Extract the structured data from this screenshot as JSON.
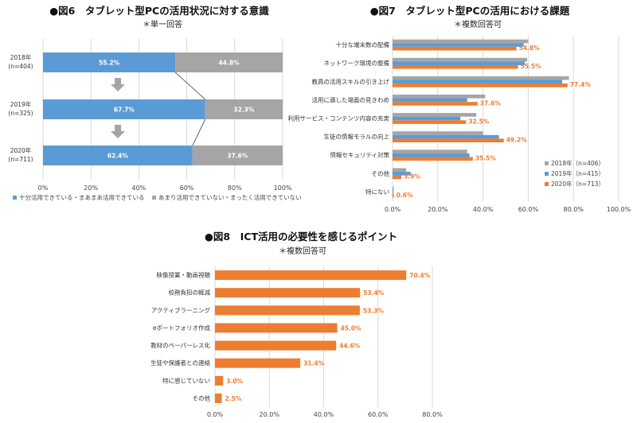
{
  "chart_data": [
    {
      "type": "bar",
      "orientation": "horizontal-stacked",
      "title": "●図6　タブレット型PCの活用状況に対する意識",
      "subtitle": "＊単一回答",
      "categories": [
        [
          "2018年",
          "(n=404)"
        ],
        [
          "2019年",
          "(n=325)"
        ],
        [
          "2020年",
          "(n=711)"
        ]
      ],
      "series": [
        {
          "name": "十分活用できている・まあまあ活用できている",
          "values": [
            55.2,
            67.7,
            62.4
          ],
          "labels": [
            "55.2%",
            "67.7%",
            "62.4%"
          ],
          "color": "#5b9bd5"
        },
        {
          "name": "あまり活用できていない・まったく活用できていない",
          "values": [
            44.8,
            32.3,
            37.6
          ],
          "labels": [
            "44.8%",
            "32.3%",
            "37.6%"
          ],
          "color": "#a5a5a5"
        }
      ],
      "xlim": [
        0,
        100
      ],
      "xticks": [
        "0%",
        "20%",
        "40%",
        "60%",
        "80%",
        "100%"
      ],
      "legend": "bottom",
      "arrow_color": "#a5a5a5"
    },
    {
      "type": "bar",
      "orientation": "horizontal-grouped",
      "title": "●図7　タブレット型PCの活用における課題",
      "subtitle": "＊複数回答可",
      "categories": [
        "十分な端末数の配備",
        "ネットワーク環境の整備",
        "教員の活用スキルの引き上げ",
        "活用に適した場面の見きわめ",
        "利用サービス・コンテンツ内容の充実",
        "生徒の情報モラルの向上",
        "情報セキュリティ対策",
        "その他",
        "特にない"
      ],
      "series": [
        {
          "name": "2018年（n=406）",
          "values": [
            60.0,
            59.5,
            78.0,
            41.0,
            37.0,
            40.0,
            33.0,
            6.0,
            0.5
          ],
          "color": "#a5a5a5"
        },
        {
          "name": "2019年（n=415）",
          "values": [
            58.0,
            58.5,
            75.0,
            33.0,
            30.0,
            47.0,
            34.0,
            8.0,
            0.4
          ],
          "color": "#5b9bd5"
        },
        {
          "name": "2020年（n=713）",
          "values": [
            54.8,
            55.5,
            77.4,
            37.6,
            32.5,
            49.2,
            35.5,
            3.9,
            0.6
          ],
          "labels": [
            "54.8%",
            "55.5%",
            "77.4%",
            "37.6%",
            "32.5%",
            "49.2%",
            "35.5%",
            "3.9%",
            "0.6%"
          ],
          "color": "#ed7d31"
        }
      ],
      "xlim": [
        0,
        100
      ],
      "xticks": [
        "0.0%",
        "20.0%",
        "40.0%",
        "60.0%",
        "80.0%",
        "100.0%"
      ],
      "legend": "right"
    },
    {
      "type": "bar",
      "orientation": "horizontal",
      "title": "●図8　ICT活用の必要性を感じるポイント",
      "subtitle": "＊複数回答可",
      "categories": [
        "映像授業・動画視聴",
        "校務負担の軽減",
        "アクティブラーニング",
        "eポートフォリオ作成",
        "教材のペーパーレス化",
        "生徒や保護者との連絡",
        "特に感じていない",
        "その他"
      ],
      "values": [
        70.4,
        53.4,
        53.3,
        45.0,
        44.6,
        31.4,
        3.0,
        2.5
      ],
      "labels": [
        "70.4%",
        "53.4%",
        "53.3%",
        "45.0%",
        "44.6%",
        "31.4%",
        "3.0%",
        "2.5%"
      ],
      "color": "#ed7d31",
      "xlim": [
        0,
        80
      ],
      "xticks": [
        "0.0%",
        "20.0%",
        "40.0%",
        "60.0%",
        "80.0%"
      ]
    }
  ]
}
